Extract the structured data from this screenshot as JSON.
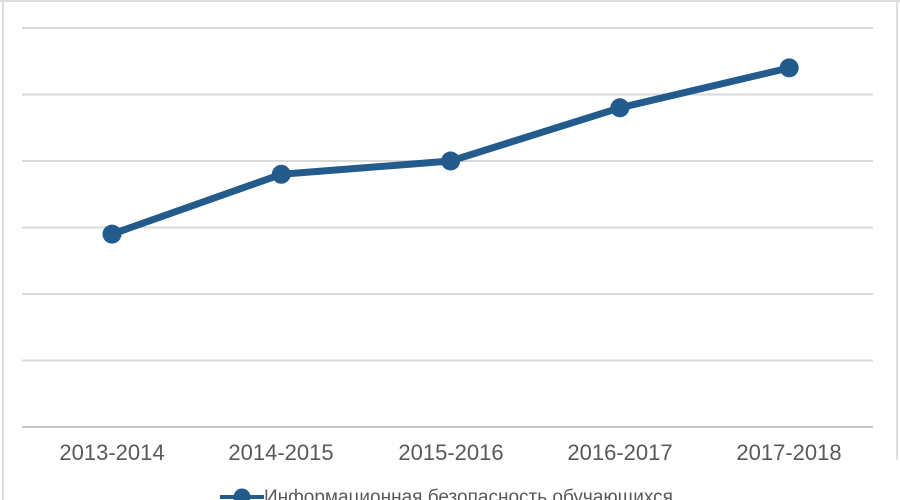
{
  "chart_data": {
    "type": "line",
    "title": "",
    "categories": [
      "2013-2014",
      "2014-2015",
      "2015-2016",
      "2016-2017",
      "2017-2018"
    ],
    "series": [
      {
        "name": "Информационная безопасность обучающихся",
        "values": [
          2.9,
          3.8,
          4.0,
          4.8,
          5.4
        ],
        "marker": "circle"
      }
    ],
    "xlabel": "",
    "ylabel": "",
    "ylim": [
      0,
      6
    ],
    "y_tick_step": 1,
    "y_axis_labels_visible": false,
    "grid": "horizontal",
    "legend_position": "bottom-center",
    "legend_clipped": true
  },
  "colors": {
    "series_line": "#235b8c",
    "gridline": "#d9d9d9",
    "axis_line": "#c6c6c6",
    "axis_label_text": "#595959",
    "screen_border": "#dedede",
    "background": "#ffffff"
  }
}
